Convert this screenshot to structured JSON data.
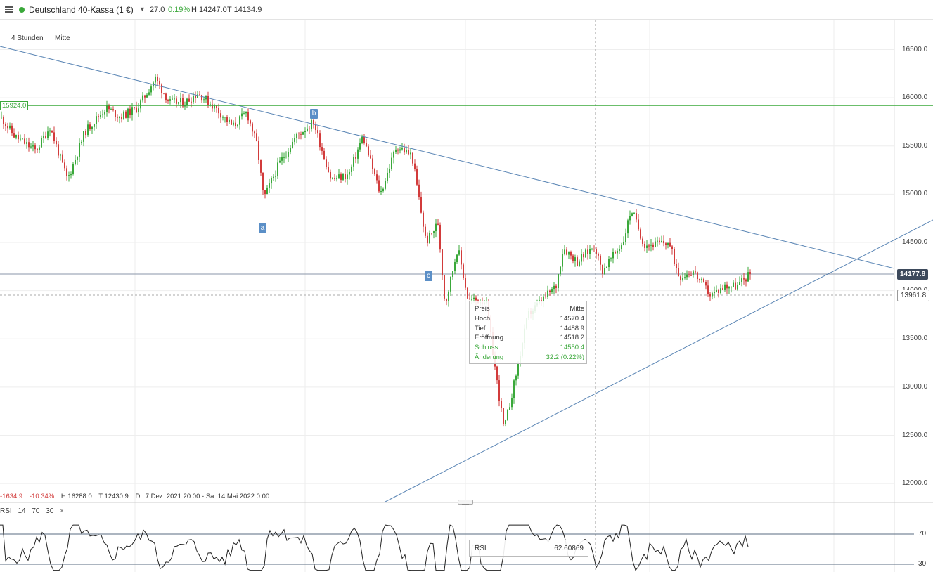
{
  "header": {
    "instrument": "Deutschland 40-Kassa (1 €)",
    "change": "27.0",
    "change_pct": "0.19%",
    "high": "H 14247.0",
    "low": "T 14134.9",
    "status_color": "#3aa83a"
  },
  "toolbar": {
    "timeframe": "4 Stunden",
    "price_type": "Mitte"
  },
  "axis": {
    "ticks": [
      "16500.0",
      "16000.0",
      "15500.0",
      "15000.0",
      "14500.0",
      "14000.0",
      "13500.0",
      "13000.0",
      "12500.0",
      "12000.0"
    ],
    "current_price": "14177.8",
    "cursor_price": "13961.8",
    "level_line": "15924.0"
  },
  "waves": {
    "a": "a",
    "b": "b",
    "c": "c"
  },
  "tooltip": {
    "header_left": "Preis",
    "header_right": "Mitte",
    "rows": [
      {
        "k": "Hoch",
        "v": "14570.4"
      },
      {
        "k": "Tief",
        "v": "14488.9"
      },
      {
        "k": "Eröffnung",
        "v": "14518.2"
      },
      {
        "k": "Schluss",
        "v": "14550.4"
      },
      {
        "k": "Änderung",
        "v": "32.2 (0.22%)"
      }
    ]
  },
  "range_info": {
    "change": "-1634.9",
    "pct": "-10.34%",
    "high": "H 16288.0",
    "low": "T 12430.9",
    "period": "Di. 7 Dez. 2021 20:00 - Sa. 14 Mai 2022 0:00"
  },
  "rsi": {
    "name": "RSI",
    "p1": "14",
    "p2": "70",
    "p3": "30",
    "close": "×",
    "tip_label": "RSI",
    "tip_value": "62.60869",
    "level_high": "70",
    "level_low": "30"
  },
  "colors": {
    "up": "#3aa83a",
    "down": "#d23b3b",
    "trend": "#5b86b5",
    "level": "#3aa83a",
    "rsi_line": "#222222"
  }
}
